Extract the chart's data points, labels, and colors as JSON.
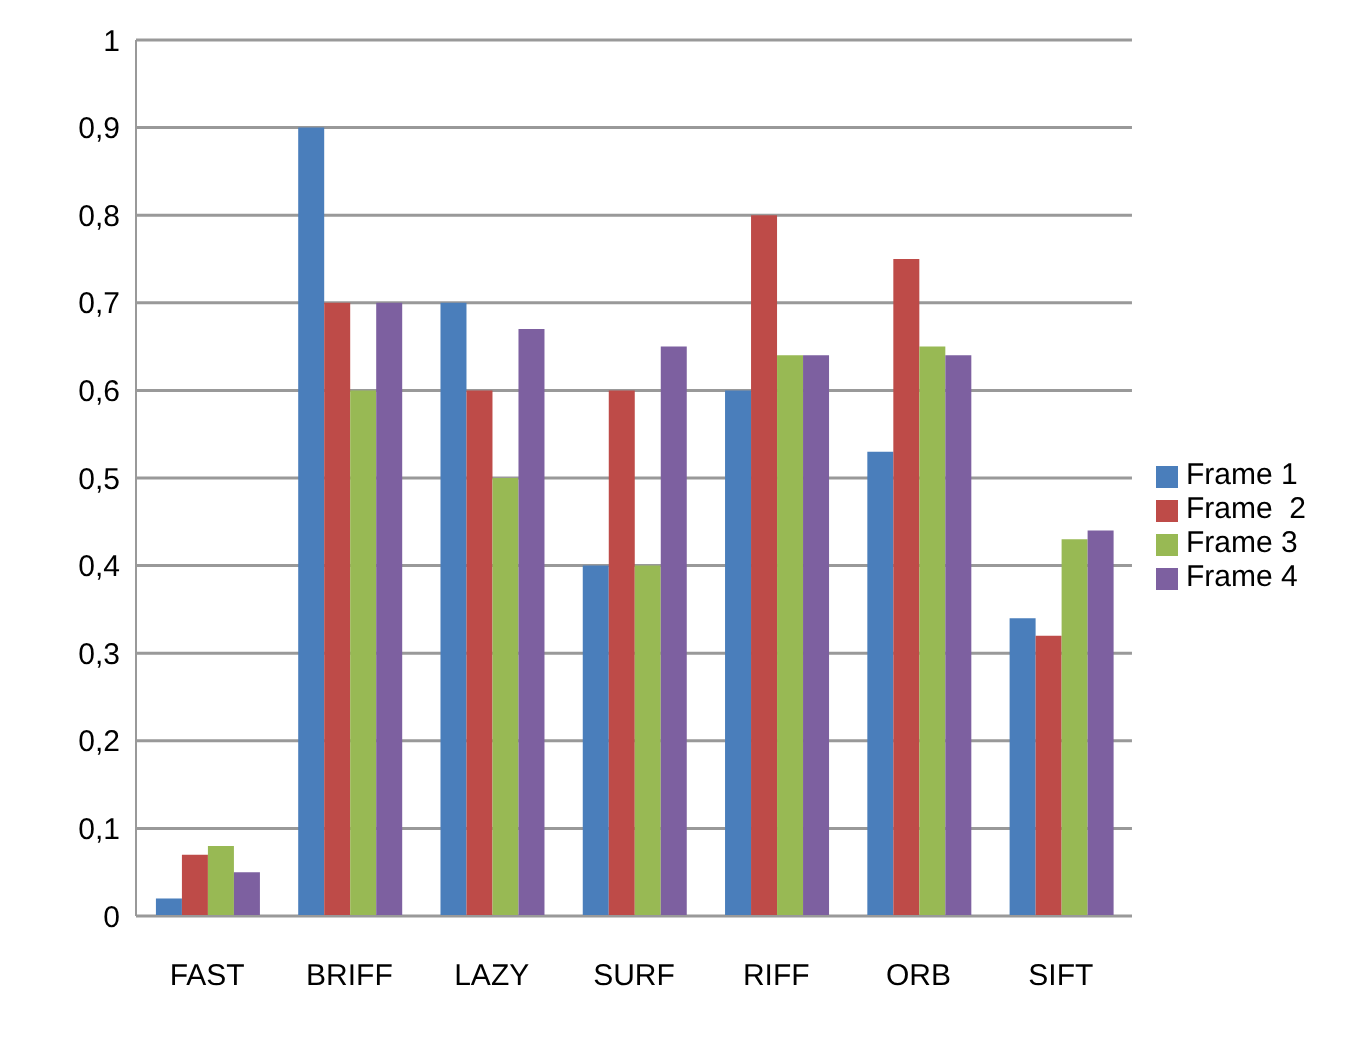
{
  "chart_data": {
    "type": "bar",
    "categories": [
      "FAST",
      "BRIFF",
      "LAZY",
      "SURF",
      "RIFF",
      "ORB",
      "SIFT"
    ],
    "series": [
      {
        "name": "Frame 1",
        "color": "#4a7ebb",
        "values": [
          0.02,
          0.9,
          0.7,
          0.4,
          0.6,
          0.53,
          0.34
        ]
      },
      {
        "name": "Frame  2",
        "color": "#be4b48",
        "values": [
          0.07,
          0.7,
          0.6,
          0.6,
          0.8,
          0.75,
          0.32
        ]
      },
      {
        "name": "Frame 3",
        "color": "#98b954",
        "values": [
          0.08,
          0.6,
          0.5,
          0.4,
          0.64,
          0.65,
          0.43
        ]
      },
      {
        "name": "Frame 4",
        "color": "#7d60a0",
        "values": [
          0.05,
          0.7,
          0.67,
          0.65,
          0.64,
          0.64,
          0.44
        ]
      }
    ],
    "ylim": [
      0,
      1
    ],
    "yticks": [
      0,
      {
        "value": 0.1,
        "label": "0,1"
      },
      {
        "value": 0.2,
        "label": "0,2"
      },
      {
        "value": 0.3,
        "label": "0,3"
      },
      {
        "value": 0.4,
        "label": "0,4"
      },
      {
        "value": 0.5,
        "label": "0,5"
      },
      {
        "value": 0.6,
        "label": "0,6"
      },
      {
        "value": 0.7,
        "label": "0,7"
      },
      {
        "value": 0.8,
        "label": "0,8"
      },
      {
        "value": 0.9,
        "label": "0,9"
      },
      1
    ],
    "grid": "y",
    "legend": "right"
  }
}
